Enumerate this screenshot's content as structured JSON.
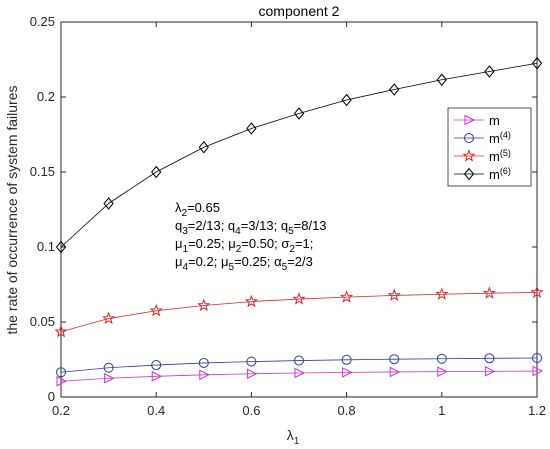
{
  "chart_data": {
    "type": "line",
    "title": "component 2",
    "xlabel": "λ",
    "xlabel_sub": "1",
    "ylabel": "the rate of occurrence of system failures",
    "xlim": [
      0.2,
      1.2
    ],
    "ylim": [
      0,
      0.25
    ],
    "xticks": [
      0.2,
      0.4,
      0.6,
      0.8,
      1,
      1.2
    ],
    "xtick_labels": [
      "0.2",
      "0.4",
      "0.6",
      "0.8",
      "1",
      "1.2"
    ],
    "yticks": [
      0,
      0.05,
      0.1,
      0.15,
      0.2,
      0.25
    ],
    "ytick_labels": [
      "0",
      "0.05",
      "0.1",
      "0.15",
      "0.2",
      "0.25"
    ],
    "grid": false,
    "legend_position": "right",
    "x": [
      0.2,
      0.3,
      0.4,
      0.5,
      0.6,
      0.7,
      0.8,
      0.9,
      1.0,
      1.1,
      1.2
    ],
    "series": [
      {
        "name": "m",
        "name_sup": "",
        "color": "#cc33cc",
        "marker": "triangle-right",
        "values": [
          0.0105,
          0.0125,
          0.0138,
          0.0148,
          0.0155,
          0.016,
          0.0164,
          0.0167,
          0.0169,
          0.0171,
          0.0173
        ]
      },
      {
        "name": "m",
        "name_sup": "(4)",
        "color": "#2e3a9e",
        "marker": "circle",
        "values": [
          0.0165,
          0.0195,
          0.0213,
          0.0227,
          0.0236,
          0.0243,
          0.0248,
          0.0252,
          0.0255,
          0.0258,
          0.026
        ]
      },
      {
        "name": "m",
        "name_sup": "(5)",
        "color": "#d62728",
        "marker": "star",
        "values": [
          0.0435,
          0.0523,
          0.0575,
          0.061,
          0.0636,
          0.0653,
          0.0666,
          0.0677,
          0.0685,
          0.0692,
          0.0697
        ]
      },
      {
        "name": "m",
        "name_sup": "(6)",
        "color": "#000000",
        "marker": "diamond",
        "values": [
          0.1,
          0.129,
          0.15,
          0.1665,
          0.179,
          0.189,
          0.198,
          0.205,
          0.2115,
          0.217,
          0.2225
        ]
      }
    ],
    "annotations": [
      [
        {
          "t": "λ"
        },
        {
          "t": "2",
          "s": "sub"
        },
        {
          "t": "=0.65"
        }
      ],
      [
        {
          "t": "q"
        },
        {
          "t": "3",
          "s": "sub"
        },
        {
          "t": "=2/13; q"
        },
        {
          "t": "4",
          "s": "sub"
        },
        {
          "t": "=3/13; q"
        },
        {
          "t": "5",
          "s": "sub"
        },
        {
          "t": "=8/13"
        }
      ],
      [
        {
          "t": "μ"
        },
        {
          "t": "1",
          "s": "sub"
        },
        {
          "t": "=0.25; "
        },
        {
          "t": "μ"
        },
        {
          "t": "2",
          "s": "sub"
        },
        {
          "t": "=0.50; "
        },
        {
          "t": "σ"
        },
        {
          "t": "2",
          "s": "sub"
        },
        {
          "t": "=1;"
        }
      ],
      [
        {
          "t": "μ"
        },
        {
          "t": "4",
          "s": "sub"
        },
        {
          "t": "=0.2; "
        },
        {
          "t": "μ"
        },
        {
          "t": "5",
          "s": "sub"
        },
        {
          "t": "=0.25; "
        },
        {
          "t": "α"
        },
        {
          "t": "5",
          "s": "sub"
        },
        {
          "t": "=2/3"
        }
      ]
    ]
  }
}
